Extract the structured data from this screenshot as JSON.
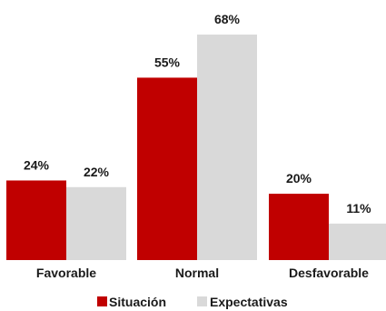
{
  "chart_data": {
    "type": "bar",
    "categories": [
      "Favorable",
      "Normal",
      "Desfavorable"
    ],
    "series": [
      {
        "name": "Situación",
        "values": [
          24,
          55,
          20
        ],
        "labels": [
          "24%",
          "55%",
          "20%"
        ],
        "color": "#c00000"
      },
      {
        "name": "Expectativas",
        "values": [
          22,
          68,
          11
        ],
        "labels": [
          "22%",
          "68%",
          "11%"
        ],
        "color": "#d9d9d9"
      }
    ],
    "ylim": [
      0,
      68
    ],
    "grid": false,
    "legend": "bottom"
  }
}
